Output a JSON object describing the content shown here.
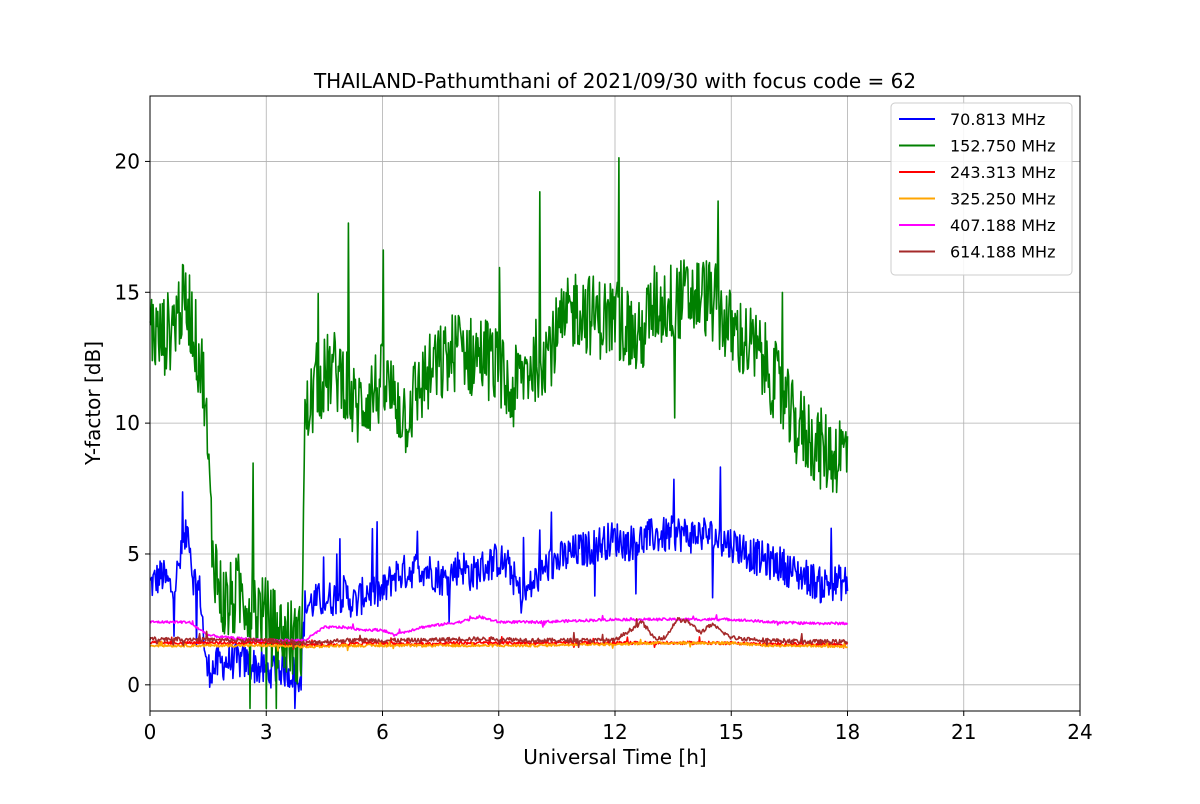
{
  "chart_data": {
    "type": "line",
    "title": "THAILAND-Pathumthani of 2021/09/30 with focus code = 62",
    "xlabel": "Universal Time [h]",
    "ylabel": "Y-factor [dB]",
    "xlim": [
      0,
      24
    ],
    "ylim": [
      -1,
      22.5
    ],
    "xticks": [
      0,
      3,
      6,
      9,
      12,
      15,
      18,
      21,
      24
    ],
    "yticks": [
      0,
      5,
      10,
      15,
      20
    ],
    "xtick_labels": [
      "0",
      "3",
      "6",
      "9",
      "12",
      "15",
      "18",
      "21",
      "24"
    ],
    "ytick_labels": [
      "0",
      "5",
      "10",
      "15",
      "20"
    ],
    "grid": true,
    "legend_position": "top-right",
    "series": [
      {
        "name": " 70.813 MHz",
        "color": "#0000ff",
        "x": [
          0,
          0.3,
          0.6,
          0.9,
          1.0,
          1.1,
          1.3,
          1.45,
          1.6,
          1.8,
          2.0,
          2.3,
          2.6,
          3.0,
          3.3,
          3.6,
          3.9,
          4.0,
          4.3,
          4.7,
          5.0,
          5.3,
          5.6,
          6.0,
          6.3,
          6.6,
          7.0,
          7.3,
          7.6,
          8.0,
          8.3,
          8.6,
          9.0,
          9.3,
          9.6,
          10.0,
          10.3,
          10.6,
          11.0,
          11.3,
          11.6,
          12.0,
          12.3,
          12.6,
          13.0,
          13.3,
          13.6,
          14.0,
          14.3,
          14.6,
          15.0,
          15.3,
          15.6,
          16.0,
          16.3,
          16.6,
          17.0,
          17.3,
          17.6,
          18.0
        ],
        "y": [
          3.8,
          4.2,
          3.6,
          5.5,
          6.0,
          4.2,
          3.5,
          0.6,
          0.6,
          0.8,
          0.9,
          0.9,
          0.8,
          0.5,
          0.7,
          0.5,
          0.4,
          3.0,
          3.2,
          3.3,
          3.5,
          3.1,
          3.6,
          3.5,
          4.2,
          4.3,
          4.5,
          4.3,
          4.0,
          4.6,
          4.2,
          4.5,
          4.8,
          4.4,
          3.3,
          4.1,
          4.6,
          4.8,
          5.1,
          5.2,
          5.4,
          5.6,
          5.4,
          5.5,
          5.7,
          5.7,
          5.8,
          5.7,
          5.8,
          5.6,
          5.4,
          5.2,
          4.9,
          4.7,
          4.6,
          4.3,
          4.1,
          3.8,
          3.9,
          3.9
        ],
        "noise": 0.7
      },
      {
        "name": "152.750 MHz",
        "color": "#008000",
        "x": [
          0,
          0.2,
          0.5,
          0.8,
          1.0,
          1.2,
          1.4,
          1.6,
          1.8,
          2.0,
          2.3,
          2.6,
          3.0,
          3.3,
          3.6,
          3.9,
          4.0,
          4.3,
          4.7,
          5.0,
          5.3,
          5.6,
          6.0,
          6.3,
          6.6,
          7.0,
          7.3,
          7.6,
          8.0,
          8.3,
          8.6,
          9.0,
          9.3,
          9.6,
          10.0,
          10.3,
          10.6,
          11.0,
          11.3,
          11.6,
          12.0,
          12.3,
          12.6,
          13.0,
          13.3,
          13.6,
          14.0,
          14.3,
          14.6,
          15.0,
          15.3,
          15.6,
          16.0,
          16.3,
          16.6,
          17.0,
          17.3,
          17.6,
          18.0
        ],
        "y": [
          13.8,
          13.2,
          13.5,
          14.5,
          14.5,
          13.0,
          11.5,
          5.5,
          3.5,
          3.0,
          3.5,
          3.2,
          2.5,
          2.0,
          1.8,
          1.5,
          10.0,
          11.5,
          12.0,
          11.8,
          10.5,
          11.0,
          11.5,
          11.0,
          10.3,
          11.5,
          12.0,
          12.3,
          13.0,
          12.5,
          12.7,
          12.0,
          11.0,
          11.8,
          12.5,
          12.9,
          13.5,
          14.5,
          14.2,
          14.0,
          14.0,
          13.8,
          13.0,
          14.5,
          14.5,
          14.7,
          14.8,
          14.9,
          14.5,
          13.5,
          13.2,
          12.8,
          12.0,
          11.0,
          10.0,
          9.5,
          9.0,
          8.8,
          9.0
        ],
        "noise": 1.6
      },
      {
        "name": "243.313 MHz",
        "color": "#ff0000",
        "x": [
          0,
          1,
          2,
          3,
          4,
          5,
          6,
          7,
          8,
          9,
          10,
          11,
          12,
          13,
          14,
          15,
          16,
          17,
          18
        ],
        "y": [
          1.6,
          1.6,
          1.6,
          1.6,
          1.5,
          1.55,
          1.6,
          1.55,
          1.6,
          1.6,
          1.6,
          1.6,
          1.6,
          1.6,
          1.6,
          1.6,
          1.55,
          1.55,
          1.55
        ],
        "noise": 0.06
      },
      {
        "name": "325.250 MHz",
        "color": "#ffa500",
        "x": [
          0,
          1,
          2,
          3,
          4,
          5,
          6,
          7,
          8,
          9,
          10,
          11,
          12,
          13,
          14,
          15,
          16,
          17,
          18
        ],
        "y": [
          1.5,
          1.5,
          1.5,
          1.5,
          1.45,
          1.5,
          1.5,
          1.5,
          1.5,
          1.5,
          1.5,
          1.55,
          1.55,
          1.6,
          1.6,
          1.6,
          1.5,
          1.5,
          1.45
        ],
        "noise": 0.05
      },
      {
        "name": "407.188 MHz",
        "color": "#ff00ff",
        "x": [
          0,
          1,
          1.5,
          2,
          3,
          4,
          4.5,
          5,
          5.5,
          6,
          6.3,
          7,
          8,
          8.5,
          9,
          10,
          11,
          12,
          13,
          14,
          15,
          16,
          17,
          18
        ],
        "y": [
          2.4,
          2.4,
          1.9,
          1.8,
          1.7,
          1.7,
          2.2,
          2.2,
          2.1,
          2.1,
          1.9,
          2.2,
          2.4,
          2.6,
          2.4,
          2.4,
          2.45,
          2.5,
          2.5,
          2.5,
          2.5,
          2.4,
          2.35,
          2.35
        ],
        "noise": 0.05
      },
      {
        "name": "614.188 MHz",
        "color": "#a52a2a",
        "x": [
          0,
          1,
          2,
          3,
          4,
          5,
          6,
          7,
          8,
          9,
          10,
          11,
          12,
          12.7,
          13.0,
          13.3,
          13.6,
          13.9,
          14.2,
          14.5,
          15,
          16,
          17,
          18
        ],
        "y": [
          1.75,
          1.75,
          1.7,
          1.7,
          1.6,
          1.7,
          1.7,
          1.7,
          1.75,
          1.75,
          1.7,
          1.7,
          1.7,
          2.4,
          1.8,
          1.8,
          2.5,
          2.4,
          2.0,
          2.3,
          1.8,
          1.7,
          1.65,
          1.65
        ],
        "noise": 0.08
      }
    ]
  }
}
